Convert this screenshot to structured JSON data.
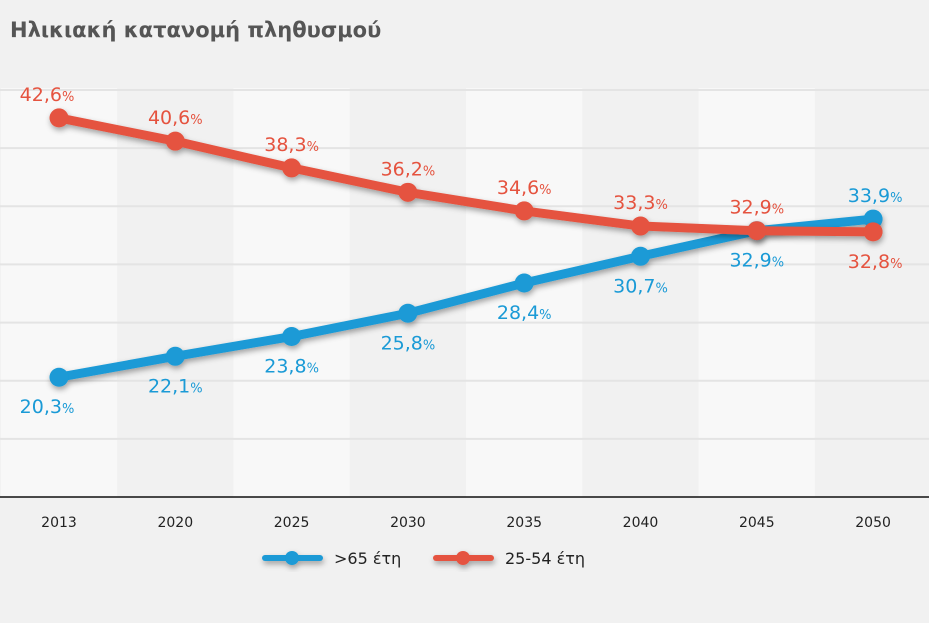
{
  "title": "Ηλικιακή κατανομή πληθυσμού",
  "chart_data": {
    "type": "line",
    "title": "Ηλικιακή κατανομή πληθυσμού",
    "categories": [
      "2013",
      "2020",
      "2025",
      "2030",
      "2035",
      "2040",
      "2045",
      "2050"
    ],
    "ylim": [
      10,
      45
    ],
    "grid": true,
    "legend_position": "bottom",
    "series": [
      {
        "name": ">65 έτη",
        "color": "#1a9ad6",
        "values": [
          20.3,
          22.1,
          23.8,
          25.8,
          28.4,
          30.7,
          32.9,
          33.9
        ],
        "labels": [
          "20,3",
          "22,1",
          "23,8",
          "25,8",
          "28,4",
          "30,7",
          "32,9",
          "33,9"
        ]
      },
      {
        "name": "25-54 έτη",
        "color": "#e5533f",
        "values": [
          42.6,
          40.6,
          38.3,
          36.2,
          34.6,
          33.3,
          32.9,
          32.8
        ],
        "labels": [
          "42,6",
          "40,6",
          "38,3",
          "36,2",
          "34,6",
          "33,3",
          "32,9",
          "32,8"
        ]
      }
    ],
    "unit_suffix": "%"
  }
}
